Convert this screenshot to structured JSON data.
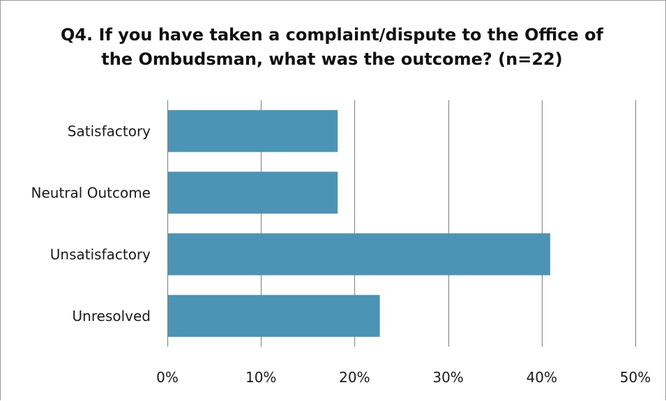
{
  "chart_data": {
    "type": "bar",
    "orientation": "horizontal",
    "title": "Q4. If you have taken a complaint/dispute to the Office of the Ombudsman, what was the outcome? (n=22)",
    "categories": [
      "Satisfactory",
      "Neutral Outcome",
      "Unsatisfactory",
      "Unresolved"
    ],
    "values": [
      18.2,
      18.2,
      40.9,
      22.7
    ],
    "unit": "%",
    "xlim": [
      0,
      50
    ],
    "xticks": [
      "0%",
      "10%",
      "20%",
      "30%",
      "40%",
      "50%"
    ],
    "xtick_values": [
      0,
      10,
      20,
      30,
      40,
      50
    ],
    "grid": "vertical",
    "legend": "none",
    "bar_color": "#4b94b5",
    "gridline_color": "#8a8a8a"
  }
}
